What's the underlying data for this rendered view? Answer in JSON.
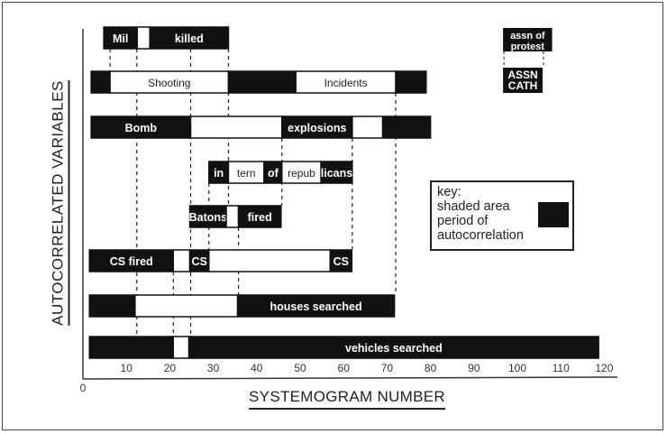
{
  "chart_data": {
    "type": "gantt",
    "xlabel": "SYSTEMOGRAM NUMBER",
    "ylabel": "AUTOCORRELATED VARIABLES",
    "xlim": [
      0,
      120
    ],
    "x_ticks": [
      10,
      20,
      30,
      40,
      50,
      60,
      70,
      80,
      90,
      100,
      110,
      120
    ],
    "origin_label": "0",
    "grid": false,
    "colors": {
      "shaded": "#111111",
      "unshaded": "#ffffff",
      "text_on_shaded": "#ffffff",
      "text_on_unshaded": "#222222"
    },
    "rows": [
      {
        "segments": [
          {
            "start": 4.8,
            "end": 12.5,
            "shaded": true,
            "label": "Mil"
          },
          {
            "start": 12.5,
            "end": 15.4,
            "shaded": false,
            "label": ""
          },
          {
            "start": 15.4,
            "end": 33.5,
            "shaded": true,
            "label": "killed"
          }
        ]
      },
      {
        "segments": [
          {
            "start": 1.9,
            "end": 6.25,
            "shaded": true,
            "label": ""
          },
          {
            "start": 6.25,
            "end": 33.5,
            "shaded": false,
            "label": "Shooting"
          },
          {
            "start": 33.5,
            "end": 49,
            "shaded": true,
            "label": ""
          },
          {
            "start": 49,
            "end": 72,
            "shaded": false,
            "label": "Incidents"
          },
          {
            "start": 72,
            "end": 79,
            "shaded": true,
            "label": ""
          }
        ]
      },
      {
        "segments": [
          {
            "start": 1.9,
            "end": 24.8,
            "shaded": true,
            "label": "Bomb"
          },
          {
            "start": 24.8,
            "end": 45.8,
            "shaded": false,
            "label": ""
          },
          {
            "start": 45.8,
            "end": 62,
            "shaded": true,
            "label": "explosions"
          },
          {
            "start": 62,
            "end": 69,
            "shaded": false,
            "label": ""
          },
          {
            "start": 69,
            "end": 80,
            "shaded": true,
            "label": ""
          }
        ]
      },
      {
        "segments": [
          {
            "start": 29,
            "end": 33.5,
            "shaded": true,
            "label": "in"
          },
          {
            "start": 33.5,
            "end": 41.7,
            "shaded": false,
            "label": "tern"
          },
          {
            "start": 41.7,
            "end": 45.8,
            "shaded": true,
            "label": "of"
          },
          {
            "start": 45.8,
            "end": 54.8,
            "shaded": false,
            "label": "repub"
          },
          {
            "start": 54.8,
            "end": 62,
            "shaded": true,
            "label": "licans"
          }
        ]
      },
      {
        "segments": [
          {
            "start": 24.6,
            "end": 33,
            "shaded": true,
            "label": "Batons"
          },
          {
            "start": 33,
            "end": 35.8,
            "shaded": false,
            "label": ""
          },
          {
            "start": 35.8,
            "end": 45.6,
            "shaded": true,
            "label": "fired"
          }
        ]
      },
      {
        "segments": [
          {
            "start": 1.5,
            "end": 20.8,
            "shaded": true,
            "label": "CS fired"
          },
          {
            "start": 20.8,
            "end": 24.6,
            "shaded": false,
            "label": ""
          },
          {
            "start": 24.6,
            "end": 29,
            "shaded": true,
            "label": "CS"
          },
          {
            "start": 29,
            "end": 56.9,
            "shaded": false,
            "label": ""
          },
          {
            "start": 56.9,
            "end": 61.9,
            "shaded": true,
            "label": "CS"
          }
        ]
      },
      {
        "segments": [
          {
            "start": 1.5,
            "end": 12,
            "shaded": true,
            "label": ""
          },
          {
            "start": 12,
            "end": 35.6,
            "shaded": false,
            "label": ""
          },
          {
            "start": 35.6,
            "end": 71.7,
            "shaded": true,
            "label": "houses searched"
          }
        ]
      },
      {
        "segments": [
          {
            "start": 1.5,
            "end": 20.8,
            "shaded": true,
            "label": ""
          },
          {
            "start": 20.8,
            "end": 24.4,
            "shaded": false,
            "label": ""
          },
          {
            "start": 24.4,
            "end": 118.7,
            "shaded": true,
            "label": "vehicles searched"
          }
        ]
      }
    ],
    "side_items": [
      {
        "start": 96.7,
        "end": 108,
        "label": [
          "assn of",
          "protest"
        ]
      },
      {
        "start": 96.7,
        "end": 105.8,
        "label": [
          "ASSN",
          "CATH"
        ]
      }
    ],
    "dashed_links": [
      {
        "x": 6.25,
        "from_row": 0,
        "to_row": 1
      },
      {
        "x": 12.4,
        "from_row": 0,
        "to_row": 7
      },
      {
        "x": 24.8,
        "from_row": 0,
        "to_row": 7
      },
      {
        "x": 33.5,
        "from_row": 0,
        "to_row": 4
      },
      {
        "x": 45.8,
        "from_row": 2,
        "to_row": 4
      },
      {
        "x": 62,
        "from_row": 2,
        "to_row": 5
      },
      {
        "x": 72,
        "from_row": 1,
        "to_row": 6
      },
      {
        "x": 29,
        "from_row": 3,
        "to_row": 5
      },
      {
        "x": 35.8,
        "from_row": 4,
        "to_row": 6
      },
      {
        "x": 20.8,
        "from_row": 5,
        "to_row": 7
      }
    ],
    "key": {
      "title": "key:",
      "lines": [
        "shaded area",
        "period of",
        "autocorrelation"
      ]
    }
  }
}
